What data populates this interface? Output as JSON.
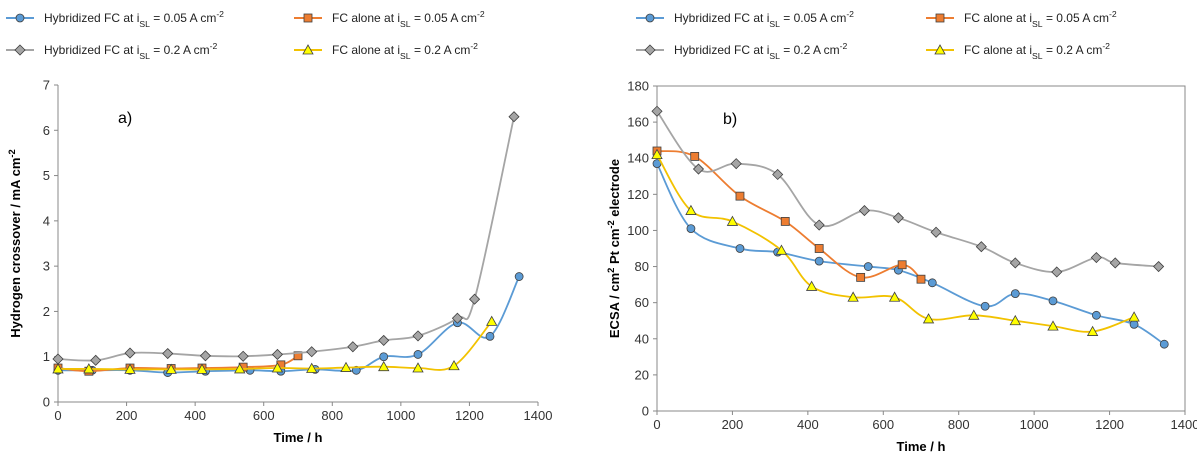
{
  "colors": {
    "hybrid_005": "#5B9BD5",
    "fc_005": "#ED7D31",
    "hybrid_02": "#A5A5A5",
    "fc_02": "#F2C200",
    "fc_02_marker": "#FFFF00",
    "marker_edge": "#404040"
  },
  "legend": {
    "items": [
      {
        "key": "hybrid_005",
        "marker": "circle",
        "main": "Hybridized FC at i",
        "sub": "SL",
        "tail": " = 0.05 A cm",
        "sup": "-2"
      },
      {
        "key": "fc_005",
        "marker": "square",
        "main": "FC alone at i",
        "sub": "SL",
        "tail": " = 0.05 A cm",
        "sup": "-2"
      },
      {
        "key": "hybrid_02",
        "marker": "diamond",
        "main": "Hybridized FC at i",
        "sub": "SL",
        "tail": " = 0.2 A cm",
        "sup": "-2"
      },
      {
        "key": "fc_02",
        "marker": "triangle",
        "main": "FC alone at i",
        "sub": "SL",
        "tail": " = 0.2 A cm",
        "sup": "-2"
      }
    ]
  },
  "chart_data": [
    {
      "type": "line",
      "panel_label": "a)",
      "xlabel": "Time / h",
      "ylabel": {
        "main": "Hydrogen crossover / mA cm",
        "sup": "-2"
      },
      "xlim": [
        0,
        1400
      ],
      "ylim": [
        0,
        7
      ],
      "xticks": [
        0,
        200,
        400,
        600,
        800,
        1000,
        1200,
        1400
      ],
      "yticks": [
        0,
        1,
        2,
        3,
        4,
        5,
        6,
        7
      ],
      "grid": false,
      "series": [
        {
          "key": "hybrid_005",
          "marker": "circle",
          "x": [
            0,
            100,
            210,
            320,
            430,
            560,
            650,
            750,
            870,
            950,
            1050,
            1165,
            1260,
            1345
          ],
          "y": [
            0.7,
            0.7,
            0.7,
            0.65,
            0.68,
            0.7,
            0.68,
            0.72,
            0.7,
            1.0,
            1.05,
            1.75,
            1.45,
            2.77
          ]
        },
        {
          "key": "fc_005",
          "marker": "square",
          "x": [
            0,
            90,
            210,
            330,
            420,
            540,
            650,
            700
          ],
          "y": [
            0.75,
            0.68,
            0.75,
            0.74,
            0.75,
            0.77,
            0.82,
            1.02
          ]
        },
        {
          "key": "hybrid_02",
          "marker": "diamond",
          "x": [
            0,
            110,
            210,
            320,
            430,
            540,
            640,
            740,
            860,
            950,
            1050,
            1165,
            1215,
            1330
          ],
          "y": [
            0.95,
            0.92,
            1.08,
            1.07,
            1.02,
            1.01,
            1.05,
            1.11,
            1.22,
            1.36,
            1.46,
            1.85,
            2.27,
            6.3
          ]
        },
        {
          "key": "fc_02",
          "marker": "triangle",
          "x": [
            0,
            90,
            210,
            330,
            420,
            530,
            640,
            740,
            840,
            950,
            1050,
            1155,
            1265
          ],
          "y": [
            0.73,
            0.73,
            0.72,
            0.72,
            0.72,
            0.73,
            0.75,
            0.74,
            0.76,
            0.78,
            0.75,
            0.8,
            1.78
          ]
        }
      ]
    },
    {
      "type": "line",
      "panel_label": "b)",
      "xlabel": "Time / h",
      "ylabel": {
        "parts": [
          {
            "t": "ECSA / cm"
          },
          {
            "t": "2",
            "s": "sup"
          },
          {
            "t": " Pt cm"
          },
          {
            "t": "-2",
            "s": "sup"
          },
          {
            "t": " electrode"
          }
        ]
      },
      "xlim": [
        0,
        1400
      ],
      "ylim": [
        0,
        180
      ],
      "xticks": [
        0,
        200,
        400,
        600,
        800,
        1000,
        1200,
        1400
      ],
      "yticks": [
        0,
        20,
        40,
        60,
        80,
        100,
        120,
        140,
        160,
        180
      ],
      "grid": false,
      "series": [
        {
          "key": "hybrid_005",
          "marker": "circle",
          "x": [
            0,
            90,
            220,
            320,
            430,
            560,
            640,
            730,
            870,
            950,
            1050,
            1165,
            1265,
            1345
          ],
          "y": [
            137,
            101,
            90,
            88,
            83,
            80,
            78,
            71,
            58,
            65,
            61,
            53,
            48,
            37
          ]
        },
        {
          "key": "fc_005",
          "marker": "square",
          "x": [
            0,
            100,
            220,
            340,
            430,
            540,
            650,
            700
          ],
          "y": [
            144,
            141,
            119,
            105,
            90,
            74,
            81,
            73
          ]
        },
        {
          "key": "hybrid_02",
          "marker": "diamond",
          "x": [
            0,
            110,
            210,
            320,
            430,
            550,
            640,
            740,
            860,
            950,
            1060,
            1165,
            1215,
            1330
          ],
          "y": [
            166,
            134,
            137,
            131,
            103,
            111,
            107,
            99,
            91,
            82,
            77,
            85,
            82,
            80
          ]
        },
        {
          "key": "fc_02",
          "marker": "triangle",
          "x": [
            0,
            90,
            200,
            330,
            410,
            520,
            630,
            720,
            840,
            950,
            1050,
            1155,
            1265
          ],
          "y": [
            142,
            111,
            105,
            89,
            69,
            63,
            63,
            51,
            53,
            50,
            47,
            44,
            52
          ]
        }
      ]
    }
  ]
}
